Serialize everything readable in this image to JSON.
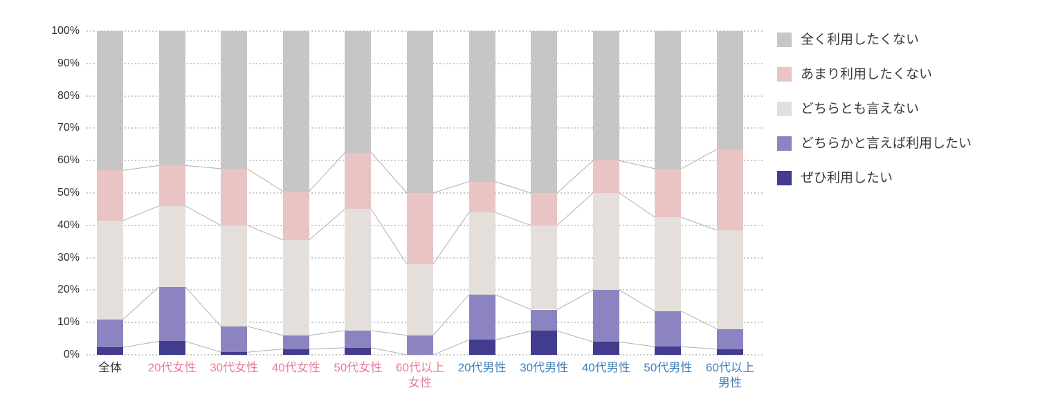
{
  "chart_data": {
    "type": "bar",
    "variant": "stacked-100-percent-column",
    "title": "",
    "xlabel": "",
    "ylabel": "",
    "ylim": [
      0,
      100
    ],
    "grid": "dotted horizontal",
    "legend_position": "right",
    "connector_lines": true,
    "y_ticks": [
      "100%",
      "90%",
      "80%",
      "70%",
      "60%",
      "50%",
      "40%",
      "30%",
      "20%",
      "10%",
      "0%"
    ],
    "categories": [
      {
        "label": "全体",
        "group": "overall",
        "label_color": "#333333"
      },
      {
        "label": "20代女性",
        "group": "female",
        "label_color": "#e87d9b"
      },
      {
        "label": "30代女性",
        "group": "female",
        "label_color": "#e87d9b"
      },
      {
        "label": "40代女性",
        "group": "female",
        "label_color": "#e87d9b"
      },
      {
        "label": "50代女性",
        "group": "female",
        "label_color": "#e87d9b"
      },
      {
        "label": "60代以上\n女性",
        "group": "female",
        "label_color": "#e87d9b"
      },
      {
        "label": "20代男性",
        "group": "male",
        "label_color": "#4080b8"
      },
      {
        "label": "30代男性",
        "group": "male",
        "label_color": "#4080b8"
      },
      {
        "label": "40代男性",
        "group": "male",
        "label_color": "#4080b8"
      },
      {
        "label": "50代男性",
        "group": "male",
        "label_color": "#4080b8"
      },
      {
        "label": "60代以上\n男性",
        "group": "male",
        "label_color": "#4080b8"
      }
    ],
    "series": [
      {
        "name": "ぜひ利用したい",
        "color": "#413c8e",
        "values": [
          2.3,
          4.2,
          0.8,
          1.8,
          2.2,
          0.0,
          4.6,
          7.4,
          4.0,
          2.5,
          1.8
        ]
      },
      {
        "name": "どちらかと言えば利用したい",
        "color": "#8c84c1",
        "values": [
          8.7,
          16.8,
          8.0,
          4.2,
          5.3,
          6.0,
          14.0,
          6.6,
          16.0,
          11.0,
          6.2
        ]
      },
      {
        "name": "どちらとも言えない",
        "color": "#e4dfda",
        "values": [
          30.5,
          25.0,
          31.2,
          29.5,
          37.5,
          22.0,
          25.4,
          26.0,
          30.0,
          29.0,
          30.5
        ]
      },
      {
        "name": "あまり利用したくない",
        "color": "#eac3c4",
        "values": [
          15.5,
          12.5,
          17.5,
          15.0,
          17.5,
          22.0,
          9.5,
          10.0,
          10.0,
          15.0,
          25.0
        ]
      },
      {
        "name": "全く利用したくない",
        "color": "#c7c5c5",
        "values": [
          43.0,
          41.5,
          42.5,
          49.5,
          37.5,
          50.0,
          46.5,
          50.0,
          40.0,
          42.5,
          36.5
        ]
      }
    ],
    "legend_order": "top-to-bottom is reverse of stacking order",
    "colors": {
      "gridline": "#c9c9c9",
      "connector_line": "#b0b0b0",
      "axis_text": "#333333",
      "legend_text": "#3a3a3a"
    }
  }
}
